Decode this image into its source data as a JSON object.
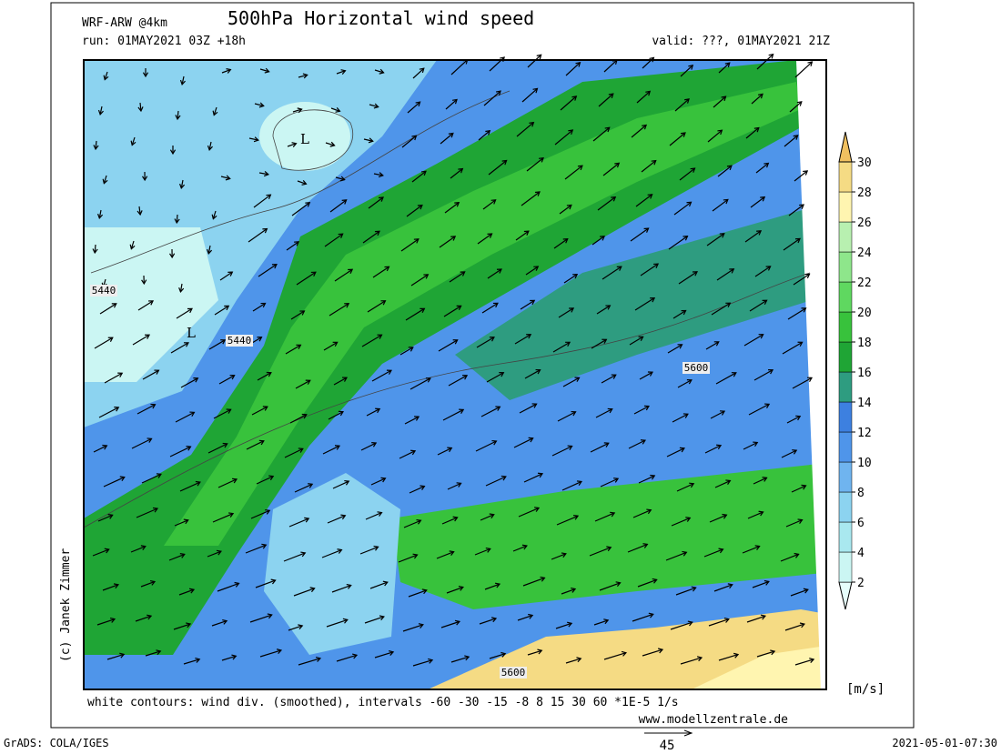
{
  "header": {
    "model": "WRF-ARW @4km",
    "title": "500hPa Horizontal wind speed",
    "run": "run: 01MAY2021 03Z +18h",
    "valid": "valid: ???, 01MAY2021 21Z"
  },
  "map": {
    "lows": [
      "L",
      "L"
    ],
    "contour_labels": [
      "5440",
      "5440",
      "5600",
      "5600"
    ]
  },
  "colorbar": {
    "levels": [
      2,
      4,
      6,
      8,
      10,
      12,
      14,
      16,
      18,
      20,
      22,
      24,
      26,
      28,
      30
    ],
    "colors": [
      "#e6fdfb",
      "#cbf6f3",
      "#a9e8ef",
      "#8cd3f0",
      "#6fb4ef",
      "#4f95ea",
      "#3d80e0",
      "#2e9c80",
      "#1fa535",
      "#38c23c",
      "#5fd860",
      "#8ee68b",
      "#b8f0b0",
      "#fff5b0",
      "#f5db84",
      "#f0c060"
    ],
    "unit": "[m/s]"
  },
  "footer": {
    "note": "white contours: wind div. (smoothed), intervals -60 -30 -15 -8 8 15 30 60 *1E-5 1/s",
    "site": "www.modellzentrale.de",
    "copyright": "(c) Janek Zimmer",
    "grads": "GrADS: COLA/IGES",
    "timestamp": "2021-05-01-07:30",
    "vector_ref": "45"
  }
}
